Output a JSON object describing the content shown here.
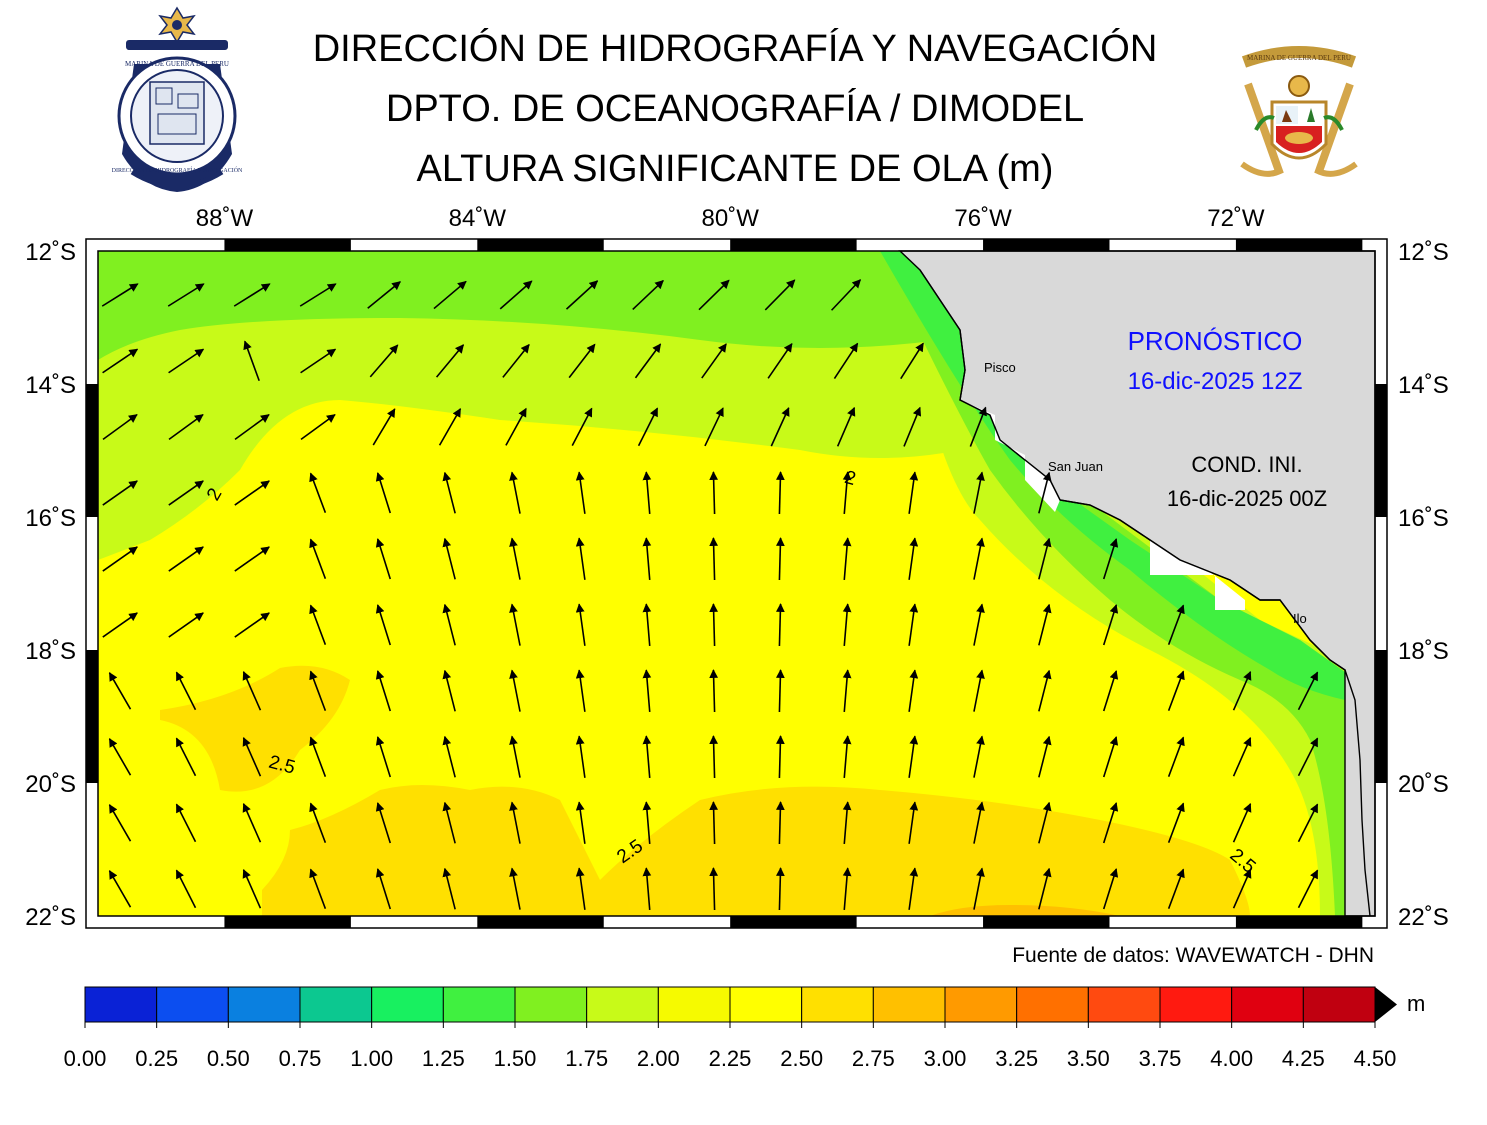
{
  "header": {
    "line1": "DIRECCIÓN DE HIDROGRAFÍA Y NAVEGACIÓN",
    "line2": "DPTO. DE OCEANOGRAFÍA / DIMODEL",
    "line3": "ALTURA SIGNIFICANTE DE OLA (m)"
  },
  "logos": {
    "left": {
      "seal_text_top": "MARINA DE GUERRA DEL PERU",
      "seal_text_bottom": "DIRECCIÓN DE HIDROGRAFÍA Y NAVEGACIÓN"
    },
    "right": {
      "banner_text": "MARINA DE GUERRA DEL PERU"
    }
  },
  "map": {
    "lon_labels": [
      "88˚W",
      "84˚W",
      "80˚W",
      "76˚W",
      "72˚W"
    ],
    "lat_labels": [
      "12˚S",
      "14˚S",
      "16˚S",
      "18˚S",
      "20˚S",
      "22˚S"
    ],
    "lon_range": [
      -90,
      -69.8
    ],
    "lat_range": [
      -22,
      -12
    ],
    "forecast_label": "PRONÓSTICO",
    "forecast_date": "16-dic-2025 12Z",
    "init_label": "COND. INI.",
    "init_date": "16-dic-2025 00Z",
    "places": [
      {
        "name": "Pisco",
        "lon": -76.2,
        "lat": -13.7
      },
      {
        "name": "San Juan",
        "lon": -75.15,
        "lat": -15.35
      },
      {
        "name": "Ilo",
        "lon": -71.35,
        "lat": -17.65
      }
    ],
    "contour_labels": [
      "2",
      "2",
      "2.5",
      "2.5",
      "2.5"
    ],
    "land_color": "#d9d9d9"
  },
  "source": "Fuente de datos: WAVEWATCH - DHN",
  "colorbar": {
    "unit": "m",
    "ticks": [
      "0.00",
      "0.25",
      "0.50",
      "0.75",
      "1.00",
      "1.25",
      "1.50",
      "1.75",
      "2.00",
      "2.25",
      "2.50",
      "2.75",
      "3.00",
      "3.25",
      "3.50",
      "3.75",
      "4.00",
      "4.25",
      "4.50"
    ],
    "colors": [
      "#0a22d6",
      "#0c4ef0",
      "#0a80e0",
      "#0cc890",
      "#18f060",
      "#40f040",
      "#80f020",
      "#c8fa18",
      "#f6fa00",
      "#ffff00",
      "#ffe000",
      "#ffc000",
      "#ff9a00",
      "#ff7000",
      "#ff4a10",
      "#ff1a10",
      "#e00010",
      "#c00010"
    ]
  }
}
